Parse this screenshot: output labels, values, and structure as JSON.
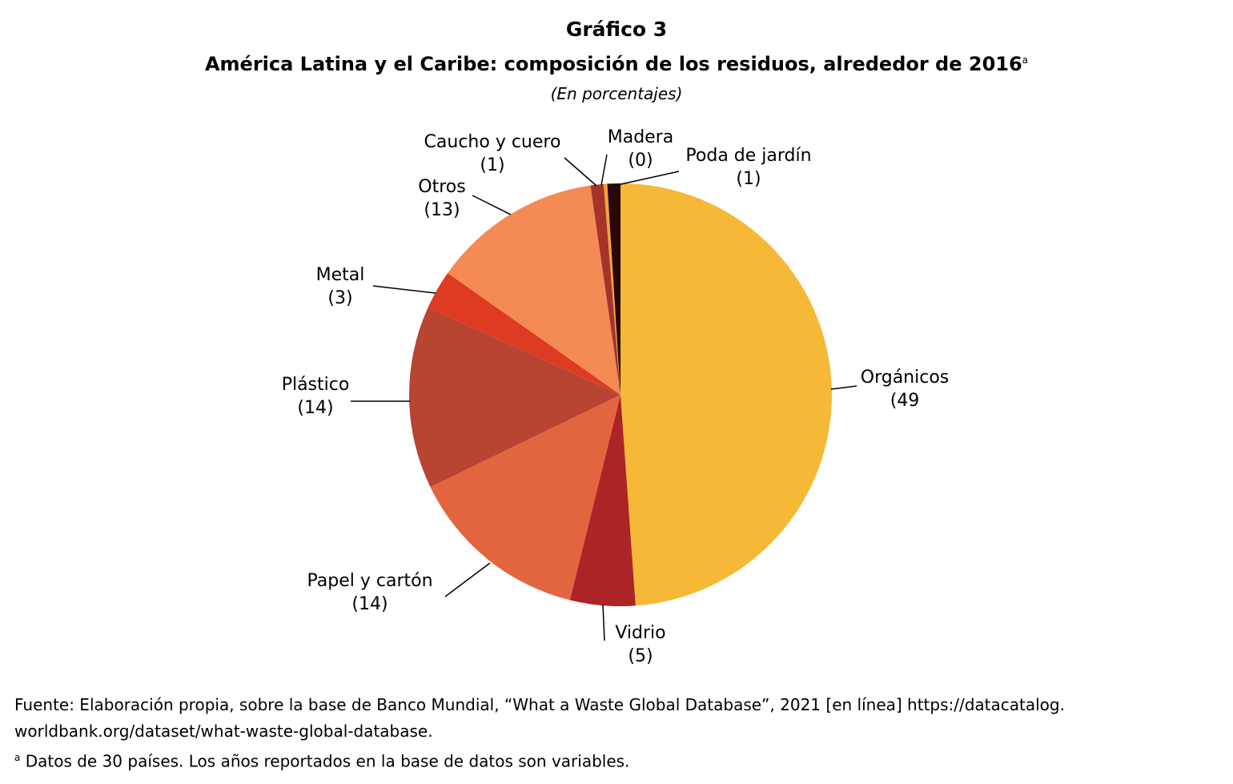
{
  "header": {
    "title": "Gráfico 3",
    "subtitle": "América Latina y el Caribe: composición de los residuos, alrededor de 2016",
    "subtitle_note_marker": "a",
    "unit": "(En porcentajes)"
  },
  "chart_data": {
    "type": "pie",
    "start": "12 o'clock",
    "direction": "clockwise",
    "slices": [
      {
        "label": "Orgánicos",
        "value": 49,
        "value_label": "(49",
        "color": "#F5B937"
      },
      {
        "label": "Vidrio",
        "value": 5,
        "value_label": "(5)",
        "color": "#AC2425"
      },
      {
        "label": "Papel y cartón",
        "value": 14,
        "value_label": "(14)",
        "color": "#E26540"
      },
      {
        "label": "Plástico",
        "value": 14,
        "value_label": "(14)",
        "color": "#B84432"
      },
      {
        "label": "Metal",
        "value": 3,
        "value_label": "(3)",
        "color": "#DE3B22"
      },
      {
        "label": "Otros",
        "value": 13,
        "value_label": "(13)",
        "color": "#F48A54"
      },
      {
        "label": "Caucho y cuero",
        "value": 1,
        "value_label": "(1)",
        "color": "#A6332A"
      },
      {
        "label": "Madera",
        "value": 0,
        "value_label": "(0)",
        "color": "#F2A23C"
      },
      {
        "label": "Poda de jardín",
        "value": 1,
        "value_label": "(1)",
        "color": "#2A0808"
      }
    ]
  },
  "footer": {
    "source": "Fuente: Elaboración propia, sobre la base de Banco Mundial, “What a Waste Global Database”, 2021 [en línea] https://datacatalog. worldbank.org/dataset/what-waste-global-database.",
    "note_marker": "a",
    "note": " Datos de 30 países. Los años reportados en la base de datos son variables."
  }
}
